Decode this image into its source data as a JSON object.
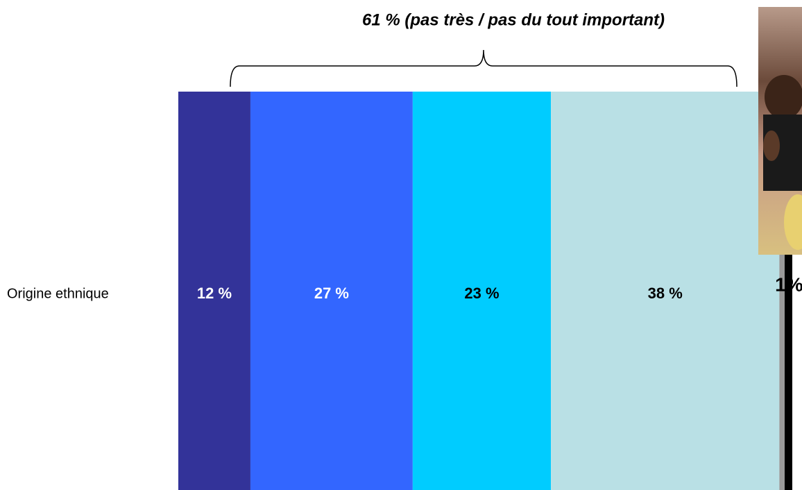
{
  "chart_data": {
    "type": "stacked-bar",
    "annotation": "61 % (pas très / pas du tout important)",
    "categories": [
      "Origine ethnique"
    ],
    "series": [
      {
        "color": "#333399",
        "label_color": "#ffffff",
        "values": [
          12
        ],
        "value_labels": [
          "12 %"
        ]
      },
      {
        "color": "#3366ff",
        "label_color": "#ffffff",
        "values": [
          27
        ],
        "value_labels": [
          "27 %"
        ]
      },
      {
        "color": "#00ccff",
        "label_color": "#000000",
        "values": [
          23
        ],
        "value_labels": [
          "23 %"
        ]
      },
      {
        "color": "#b9e0e5",
        "label_color": "#000000",
        "values": [
          38
        ],
        "value_labels": [
          "38 %"
        ]
      },
      {
        "color": "#999999",
        "label_color": "#000000",
        "values": [
          1
        ],
        "value_labels": [
          "1%"
        ]
      }
    ]
  }
}
